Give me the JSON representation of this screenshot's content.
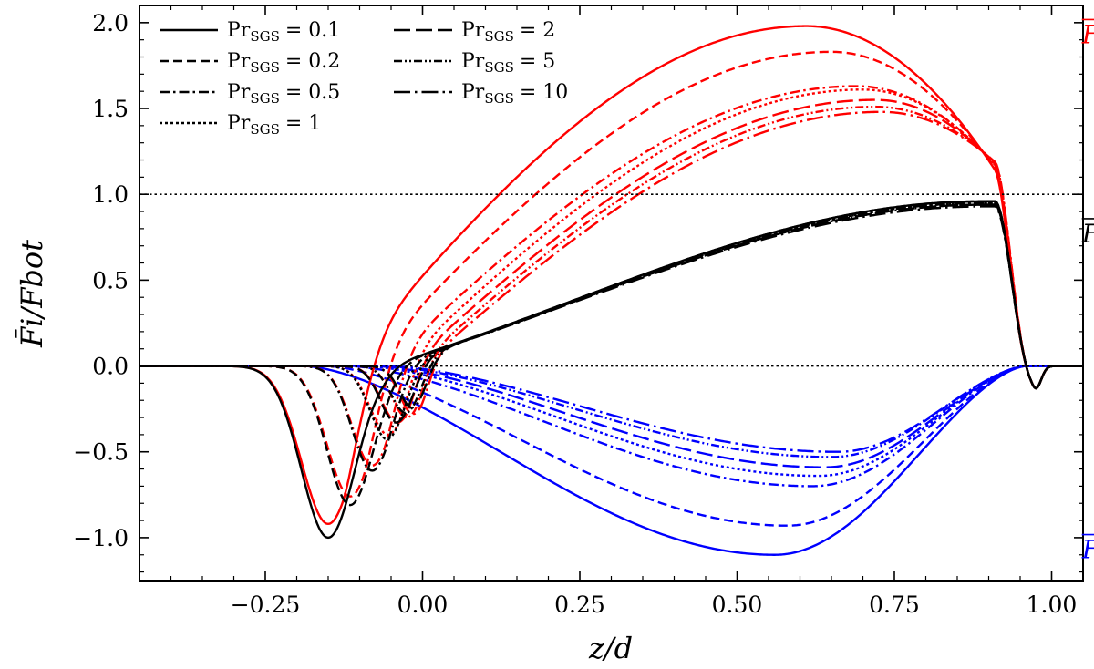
{
  "chart_data": {
    "type": "line",
    "title": "",
    "xlabel": "z/d",
    "ylabel": "F̄i/Fbot",
    "xlim": [
      -0.45,
      1.05
    ],
    "ylim": [
      -1.25,
      2.1
    ],
    "x_ticks": [
      -0.25,
      0.0,
      0.25,
      0.5,
      0.75,
      1.0
    ],
    "x_tick_labels": [
      "−0.25",
      "0.00",
      "0.25",
      "0.50",
      "0.75",
      "1.00"
    ],
    "y_ticks": [
      -1.0,
      -0.5,
      0.0,
      0.5,
      1.0,
      1.5,
      2.0
    ],
    "y_tick_labels": [
      "−1.0",
      "−0.5",
      "0.0",
      "0.5",
      "1.0",
      "1.5",
      "2.0"
    ],
    "reference_lines": [
      {
        "y": 1.0,
        "style": "dotted"
      },
      {
        "y": 0.0,
        "style": "dotted"
      }
    ],
    "legend": {
      "position": "top-left",
      "entries": [
        {
          "name": "Pr_SGS = 0.1",
          "prefix": "Pr",
          "sub": "SGS",
          "value": "= 0.1",
          "dash": "solid"
        },
        {
          "name": "Pr_SGS = 0.2",
          "prefix": "Pr",
          "sub": "SGS",
          "value": "= 0.2",
          "dash": "dashed"
        },
        {
          "name": "Pr_SGS = 0.5",
          "prefix": "Pr",
          "sub": "SGS",
          "value": "= 0.5",
          "dash": "dashdot"
        },
        {
          "name": "Pr_SGS = 1",
          "prefix": "Pr",
          "sub": "SGS",
          "value": "= 1",
          "dash": "dotted"
        },
        {
          "name": "Pr_SGS = 2",
          "prefix": "Pr",
          "sub": "SGS",
          "value": "= 2",
          "dash": "longdash"
        },
        {
          "name": "Pr_SGS = 5",
          "prefix": "Pr",
          "sub": "SGS",
          "value": "= 5",
          "dash": "dashdotdot"
        },
        {
          "name": "Pr_SGS = 10",
          "prefix": "Pr",
          "sub": "SGS",
          "value": "= 10",
          "dash": "longdashdot"
        }
      ]
    },
    "annotations": [
      {
        "label": "F_enth",
        "main": "F",
        "sub": "enth",
        "color": "#ff0000",
        "at": [
          0.78,
          1.88
        ]
      },
      {
        "label": "F_conv",
        "main": "F",
        "sub": "conv",
        "color": "#000000",
        "at": [
          0.78,
          0.72
        ]
      },
      {
        "label": "F_kin",
        "main": "F",
        "sub": "kin",
        "color": "#0000ff",
        "at": [
          0.78,
          -1.12
        ]
      }
    ],
    "colors": {
      "enth": "#ff0000",
      "conv": "#000000",
      "kin": "#0000ff"
    },
    "series": [
      {
        "name": "Pr_SGS = 0.1",
        "dash": "solid",
        "dip": {
          "center": -0.15,
          "width": 0.06
        },
        "conv": {
          "dip_depth": -1.0,
          "plateau": 0.96
        },
        "enth": {
          "dip_depth": -0.92,
          "peak": 1.98,
          "peak_x": 0.61
        },
        "kin": {
          "min": -1.1,
          "min_x": 0.56
        }
      },
      {
        "name": "Pr_SGS = 0.2",
        "dash": "dashed",
        "dip": {
          "center": -0.115,
          "width": 0.052
        },
        "conv": {
          "dip_depth": -0.81,
          "plateau": 0.96
        },
        "enth": {
          "dip_depth": -0.76,
          "peak": 1.83,
          "peak_x": 0.65
        },
        "kin": {
          "min": -0.93,
          "min_x": 0.58
        }
      },
      {
        "name": "Pr_SGS = 0.5",
        "dash": "dashdot",
        "dip": {
          "center": -0.08,
          "width": 0.045
        },
        "conv": {
          "dip_depth": -0.61,
          "plateau": 0.95
        },
        "enth": {
          "dip_depth": -0.58,
          "peak": 1.63,
          "peak_x": 0.69
        },
        "kin": {
          "min": -0.7,
          "min_x": 0.62
        }
      },
      {
        "name": "Pr_SGS = 1",
        "dash": "dotted",
        "dip": {
          "center": -0.055,
          "width": 0.04
        },
        "conv": {
          "dip_depth": -0.43,
          "plateau": 0.95
        },
        "enth": {
          "dip_depth": -0.4,
          "peak": 1.61,
          "peak_x": 0.7
        },
        "kin": {
          "min": -0.64,
          "min_x": 0.63
        }
      },
      {
        "name": "Pr_SGS = 2",
        "dash": "longdash",
        "dip": {
          "center": -0.04,
          "width": 0.036
        },
        "conv": {
          "dip_depth": -0.35,
          "plateau": 0.94
        },
        "enth": {
          "dip_depth": -0.33,
          "peak": 1.55,
          "peak_x": 0.72
        },
        "kin": {
          "min": -0.59,
          "min_x": 0.64
        }
      },
      {
        "name": "Pr_SGS = 5",
        "dash": "dashdotdot",
        "dip": {
          "center": -0.025,
          "width": 0.033
        },
        "conv": {
          "dip_depth": -0.31,
          "plateau": 0.94
        },
        "enth": {
          "dip_depth": -0.3,
          "peak": 1.51,
          "peak_x": 0.72
        },
        "kin": {
          "min": -0.53,
          "min_x": 0.65
        }
      },
      {
        "name": "Pr_SGS = 10",
        "dash": "longdashdot",
        "dip": {
          "center": -0.015,
          "width": 0.03
        },
        "conv": {
          "dip_depth": -0.29,
          "plateau": 0.93
        },
        "enth": {
          "dip_depth": -0.28,
          "peak": 1.48,
          "peak_x": 0.73
        },
        "kin": {
          "min": -0.5,
          "min_x": 0.66
        }
      }
    ]
  }
}
